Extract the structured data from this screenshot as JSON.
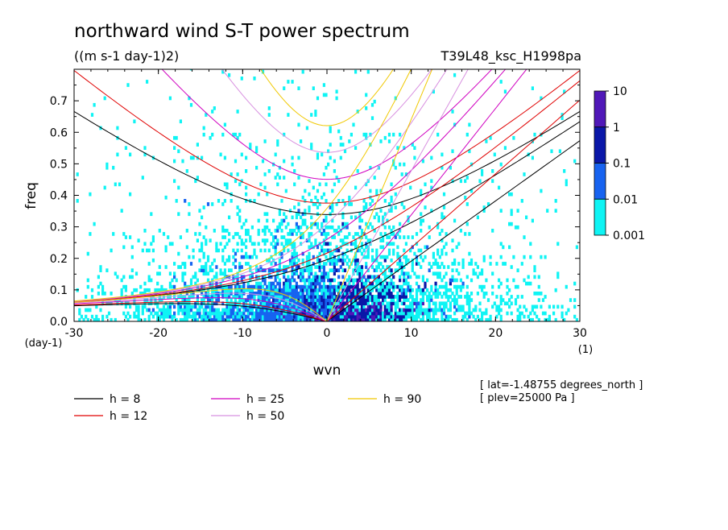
{
  "header": {
    "title": "northward wind S-T power spectrum",
    "units": "((m s-1 day-1)2)",
    "case": "T39L48_ksc_H1998pa"
  },
  "info": {
    "lat": "[ lat=-1.48755 degrees_north ]",
    "plev": "[ plev=25000 Pa ]"
  },
  "colorbar": {
    "labels": [
      "10",
      "1",
      "0.1",
      "0.01",
      "0.001"
    ],
    "colors": [
      "#5018b8",
      "#0a17a8",
      "#1763f0",
      "#0ff4f4"
    ]
  },
  "chart_data": {
    "type": "heatmap",
    "title": "northward wind S-T power spectrum",
    "subtitle": "((m s-1 day-1)2)",
    "xlabel": "wvn",
    "xunit": "(1)",
    "ylabel": "freq",
    "yunit": "(day-1)",
    "xlim": [
      -30,
      30
    ],
    "ylim": [
      0,
      0.8
    ],
    "xticks": [
      -30,
      -20,
      -10,
      0,
      10,
      20,
      30
    ],
    "xtick_labels": [
      "-30",
      "-20",
      "-10",
      "0",
      "10",
      "20",
      "30"
    ],
    "yticks": [
      0.0,
      0.1,
      0.2,
      0.3,
      0.4,
      0.5,
      0.6,
      0.7
    ],
    "ytick_labels": [
      "0.0",
      "0.1",
      "0.2",
      "0.3",
      "0.4",
      "0.5",
      "0.6",
      "0.7"
    ],
    "contour_levels": [
      0.001,
      0.01,
      0.1,
      1,
      10
    ],
    "level_colors": [
      "#0ff4f4",
      "#1763f0",
      "#0a17a8",
      "#5018b8"
    ],
    "dispersion_curves": [
      {
        "name": "h =  8",
        "h": 8,
        "color": "#000000"
      },
      {
        "name": "h = 12",
        "h": 12,
        "color": "#e00000"
      },
      {
        "name": "h = 25",
        "h": 25,
        "color": "#d000c0"
      },
      {
        "name": "h = 50",
        "h": 50,
        "color": "#d890e0"
      },
      {
        "name": "h = 90",
        "h": 90,
        "color": "#f0c800"
      }
    ],
    "legend_position": "bottom"
  }
}
